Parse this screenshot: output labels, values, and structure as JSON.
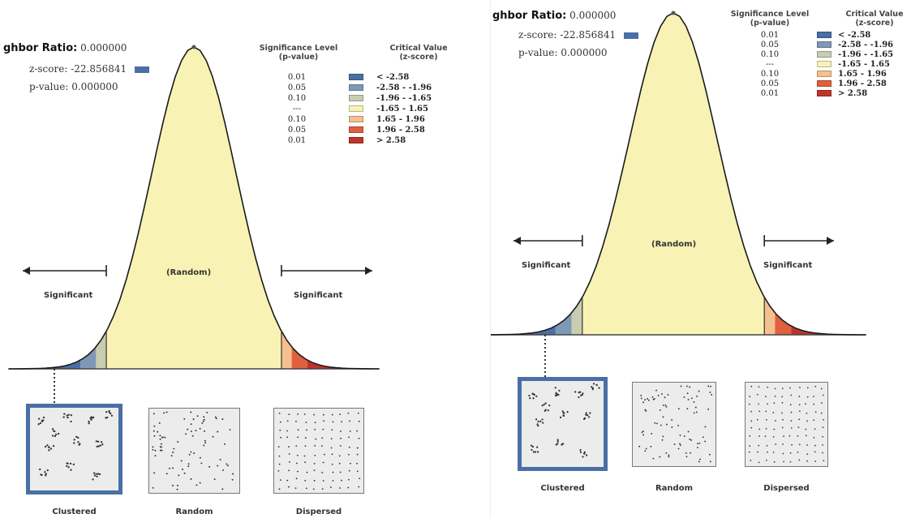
{
  "colors": {
    "neg_high": "#4a6fa5",
    "neg_mid": "#7f98b8",
    "neg_low": "#c9cdb0",
    "neutral": "#f8f3b4",
    "pos_low": "#f5c08f",
    "pos_mid": "#e0603e",
    "pos_high": "#c0332c"
  },
  "left": {
    "ratio_label": "ghbor Ratio:",
    "ratio_value": "0.000000",
    "zscore_label": "z-score:",
    "zscore_value": "-22.856841",
    "pvalue_label": "p-value:",
    "pvalue_value": "0.000000",
    "legend_header_sig": "Significance Level\n(p-value)",
    "legend_header_crit": "Critical Value\n(z-score)",
    "rows": [
      {
        "p": "0.01",
        "c": "< -2.58",
        "color": "neg_high"
      },
      {
        "p": "0.05",
        "c": "-2.58 - -1.96",
        "color": "neg_mid"
      },
      {
        "p": "0.10",
        "c": "-1.96 - -1.65",
        "color": "neg_low"
      },
      {
        "p": "---",
        "c": "-1.65 - 1.65",
        "color": "neutral"
      },
      {
        "p": "0.10",
        "c": "1.65 - 1.96",
        "color": "pos_low"
      },
      {
        "p": "0.05",
        "c": "1.96 - 2.58",
        "color": "pos_mid"
      },
      {
        "p": "0.01",
        "c": "> 2.58",
        "color": "pos_high"
      }
    ],
    "random_label": "(Random)",
    "significant_left": "Significant",
    "significant_right": "Significant",
    "captions": [
      "Clustered",
      "Random",
      "Dispersed"
    ]
  },
  "right": {
    "ratio_label": "ghbor Ratio:",
    "ratio_value": "0.000000",
    "zscore_label": "z-score:",
    "zscore_value": "-22.856841",
    "pvalue_label": "p-value:",
    "pvalue_value": "0.000000",
    "legend_header_sig": "Significance Level\n(p-value)",
    "legend_header_crit": "Critical Value\n(z-score)",
    "rows": [
      {
        "p": "0.01",
        "c": "< -2.58",
        "color": "neg_high"
      },
      {
        "p": "0.05",
        "c": "-2.58 - -1.96",
        "color": "neg_mid"
      },
      {
        "p": "0.10",
        "c": "-1.96 - -1.65",
        "color": "neg_low"
      },
      {
        "p": "---",
        "c": "-1.65 - 1.65",
        "color": "neutral"
      },
      {
        "p": "0.10",
        "c": "1.65 - 1.96",
        "color": "pos_low"
      },
      {
        "p": "0.05",
        "c": "1.96 - 2.58",
        "color": "pos_mid"
      },
      {
        "p": "0.01",
        "c": "> 2.58",
        "color": "pos_high"
      }
    ],
    "random_label": "(Random)",
    "significant_left": "Significant",
    "significant_right": "Significant",
    "captions": [
      "Clustered",
      "Random",
      "Dispersed"
    ]
  }
}
